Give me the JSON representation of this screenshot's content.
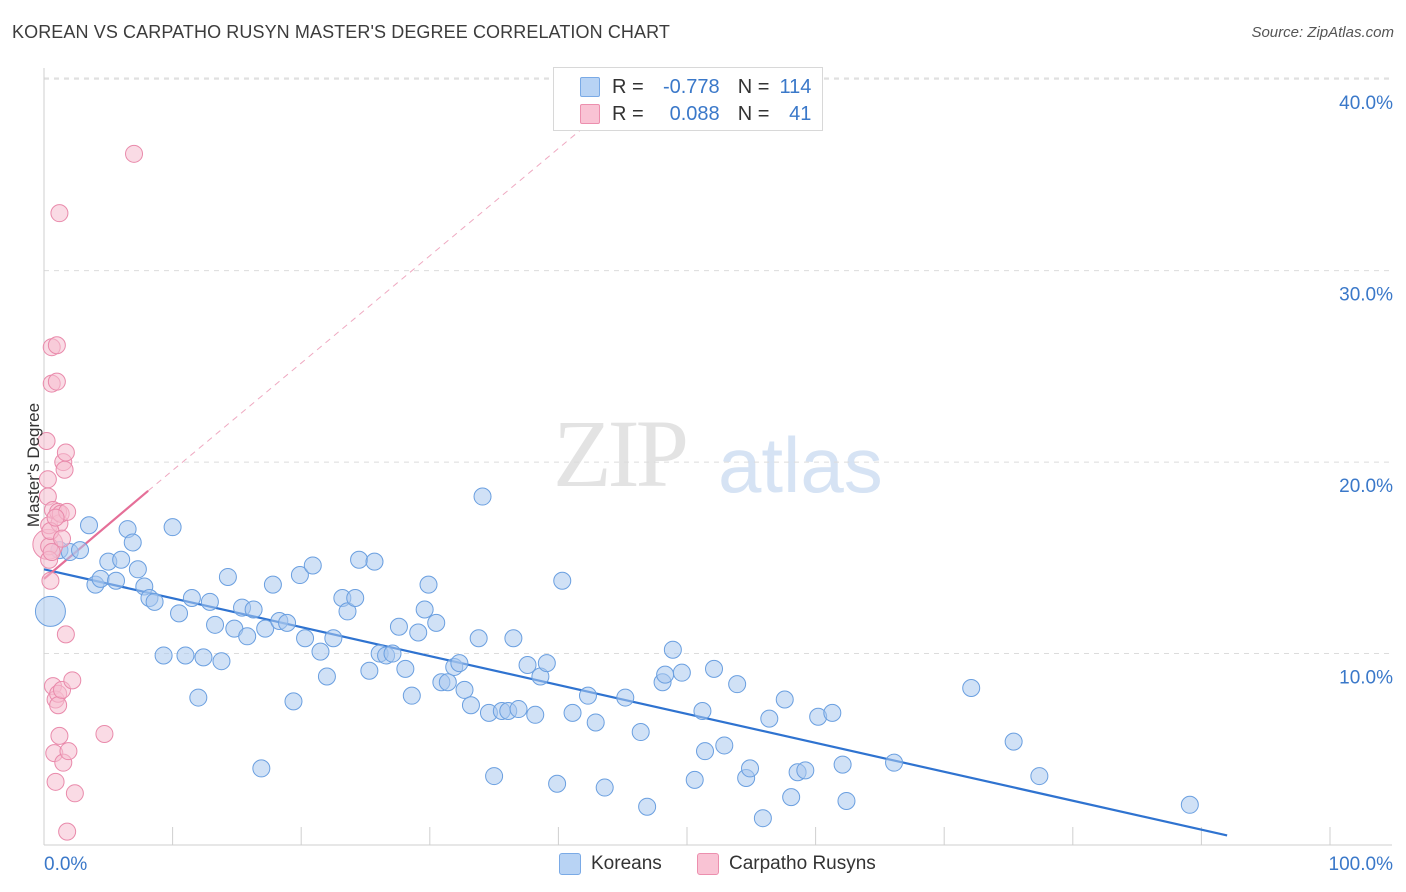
{
  "title": "KOREAN VS CARPATHO RUSYN MASTER'S DEGREE CORRELATION CHART",
  "source": "Source: ZipAtlas.com",
  "watermark": {
    "zip": "ZIP",
    "atlas": "atlas"
  },
  "legend": {
    "r_label": "R =",
    "n_label": "N =",
    "rows": [
      {
        "r": "-0.778",
        "n": "114",
        "fill": "#b8d3f4",
        "stroke": "#7aaae6"
      },
      {
        "r": "0.088",
        "n": "41",
        "fill": "#f9c3d4",
        "stroke": "#ec8fae"
      }
    ]
  },
  "bottom_legend": [
    {
      "label": "Koreans",
      "fill": "#b8d3f4",
      "stroke": "#7aaae6"
    },
    {
      "label": "Carpatho Rusyns",
      "fill": "#f9c3d4",
      "stroke": "#ec8fae"
    }
  ],
  "colors": {
    "blue_point": "#a9c8ef",
    "blue_stroke": "#6a9fe0",
    "blue_line": "#2f73d0",
    "pink_point": "#f6bdd0",
    "pink_stroke": "#e98aab",
    "pink_line": "#e56f98",
    "grid": "#dcdcdc",
    "axis_text": "#3a78c9"
  },
  "chart_data": {
    "type": "scatter",
    "title": "KOREAN VS CARPATHO RUSYN MASTER'S DEGREE CORRELATION CHART",
    "xlabel": "",
    "ylabel": "Master's Degree",
    "xlim": [
      0,
      100
    ],
    "ylim": [
      0,
      41
    ],
    "x_tick_labels": [
      "0.0%",
      "100.0%"
    ],
    "y_ticks": [
      10,
      20,
      30,
      40
    ],
    "y_tick_labels": [
      "10.0%",
      "20.0%",
      "30.0%",
      "40.0%"
    ],
    "grid": true,
    "series": [
      {
        "name": "Koreans",
        "r": -0.778,
        "n": 114,
        "trend": {
          "x": [
            0,
            92
          ],
          "y": [
            14.4,
            0.5
          ]
        },
        "points": [
          {
            "x": 0.5,
            "y": 12.2,
            "big": true
          },
          {
            "x": 1.2,
            "y": 15.4
          },
          {
            "x": 2.0,
            "y": 15.3
          },
          {
            "x": 2.8,
            "y": 15.4
          },
          {
            "x": 3.5,
            "y": 16.7
          },
          {
            "x": 4.0,
            "y": 13.6
          },
          {
            "x": 4.4,
            "y": 13.9
          },
          {
            "x": 5.0,
            "y": 14.8
          },
          {
            "x": 5.6,
            "y": 13.8
          },
          {
            "x": 6.0,
            "y": 14.9
          },
          {
            "x": 6.5,
            "y": 16.5
          },
          {
            "x": 6.9,
            "y": 15.8
          },
          {
            "x": 7.3,
            "y": 14.4
          },
          {
            "x": 7.8,
            "y": 13.5
          },
          {
            "x": 8.2,
            "y": 12.9
          },
          {
            "x": 8.6,
            "y": 12.7
          },
          {
            "x": 9.3,
            "y": 9.9
          },
          {
            "x": 10.0,
            "y": 16.6
          },
          {
            "x": 10.5,
            "y": 12.1
          },
          {
            "x": 11.0,
            "y": 9.9
          },
          {
            "x": 11.5,
            "y": 12.9
          },
          {
            "x": 12.0,
            "y": 7.7
          },
          {
            "x": 12.4,
            "y": 9.8
          },
          {
            "x": 12.9,
            "y": 12.7
          },
          {
            "x": 13.3,
            "y": 11.5
          },
          {
            "x": 13.8,
            "y": 9.6
          },
          {
            "x": 14.3,
            "y": 14.0
          },
          {
            "x": 14.8,
            "y": 11.3
          },
          {
            "x": 15.4,
            "y": 12.4
          },
          {
            "x": 15.8,
            "y": 10.9
          },
          {
            "x": 16.3,
            "y": 12.3
          },
          {
            "x": 16.9,
            "y": 4.0
          },
          {
            "x": 17.2,
            "y": 11.3
          },
          {
            "x": 17.8,
            "y": 13.6
          },
          {
            "x": 18.3,
            "y": 11.7
          },
          {
            "x": 18.9,
            "y": 11.6
          },
          {
            "x": 19.4,
            "y": 7.5
          },
          {
            "x": 19.9,
            "y": 14.1
          },
          {
            "x": 20.3,
            "y": 10.8
          },
          {
            "x": 20.9,
            "y": 14.6
          },
          {
            "x": 21.5,
            "y": 10.1
          },
          {
            "x": 22.0,
            "y": 8.8
          },
          {
            "x": 22.5,
            "y": 10.8
          },
          {
            "x": 23.2,
            "y": 12.9
          },
          {
            "x": 23.6,
            "y": 12.2
          },
          {
            "x": 24.2,
            "y": 12.9
          },
          {
            "x": 24.5,
            "y": 14.9
          },
          {
            "x": 25.3,
            "y": 9.1
          },
          {
            "x": 25.7,
            "y": 14.8
          },
          {
            "x": 26.1,
            "y": 10.0
          },
          {
            "x": 26.6,
            "y": 9.9
          },
          {
            "x": 27.1,
            "y": 10.0
          },
          {
            "x": 27.6,
            "y": 11.4
          },
          {
            "x": 28.1,
            "y": 9.2
          },
          {
            "x": 28.6,
            "y": 7.8
          },
          {
            "x": 29.1,
            "y": 11.1
          },
          {
            "x": 29.6,
            "y": 12.3
          },
          {
            "x": 29.9,
            "y": 13.6
          },
          {
            "x": 30.5,
            "y": 11.6
          },
          {
            "x": 30.9,
            "y": 8.5
          },
          {
            "x": 31.4,
            "y": 8.5
          },
          {
            "x": 31.9,
            "y": 9.3
          },
          {
            "x": 32.3,
            "y": 9.5
          },
          {
            "x": 32.7,
            "y": 8.1
          },
          {
            "x": 33.2,
            "y": 7.3
          },
          {
            "x": 33.8,
            "y": 10.8
          },
          {
            "x": 34.1,
            "y": 18.2
          },
          {
            "x": 34.6,
            "y": 6.9
          },
          {
            "x": 35.0,
            "y": 3.6
          },
          {
            "x": 35.6,
            "y": 7.0
          },
          {
            "x": 36.1,
            "y": 7.0
          },
          {
            "x": 36.5,
            "y": 10.8
          },
          {
            "x": 36.9,
            "y": 7.1
          },
          {
            "x": 37.6,
            "y": 9.4
          },
          {
            "x": 38.2,
            "y": 6.8
          },
          {
            "x": 38.6,
            "y": 8.8
          },
          {
            "x": 39.1,
            "y": 9.5
          },
          {
            "x": 39.9,
            "y": 3.2
          },
          {
            "x": 40.3,
            "y": 13.8
          },
          {
            "x": 41.1,
            "y": 6.9
          },
          {
            "x": 42.3,
            "y": 7.8
          },
          {
            "x": 42.9,
            "y": 6.4
          },
          {
            "x": 43.6,
            "y": 3.0
          },
          {
            "x": 45.2,
            "y": 7.7
          },
          {
            "x": 46.4,
            "y": 5.9
          },
          {
            "x": 46.9,
            "y": 2.0
          },
          {
            "x": 48.1,
            "y": 8.5
          },
          {
            "x": 48.3,
            "y": 8.9
          },
          {
            "x": 48.9,
            "y": 10.2
          },
          {
            "x": 49.6,
            "y": 9.0
          },
          {
            "x": 50.6,
            "y": 3.4
          },
          {
            "x": 51.2,
            "y": 7.0
          },
          {
            "x": 51.4,
            "y": 4.9
          },
          {
            "x": 52.1,
            "y": 9.2
          },
          {
            "x": 52.9,
            "y": 5.2
          },
          {
            "x": 53.9,
            "y": 8.4
          },
          {
            "x": 54.6,
            "y": 3.5
          },
          {
            "x": 54.9,
            "y": 4.0
          },
          {
            "x": 55.9,
            "y": 1.4
          },
          {
            "x": 56.4,
            "y": 6.6
          },
          {
            "x": 57.6,
            "y": 7.6
          },
          {
            "x": 58.1,
            "y": 2.5
          },
          {
            "x": 58.6,
            "y": 3.8
          },
          {
            "x": 59.2,
            "y": 3.9
          },
          {
            "x": 60.2,
            "y": 6.7
          },
          {
            "x": 61.3,
            "y": 6.9
          },
          {
            "x": 62.1,
            "y": 4.2
          },
          {
            "x": 62.4,
            "y": 2.3
          },
          {
            "x": 66.1,
            "y": 4.3
          },
          {
            "x": 72.1,
            "y": 8.2
          },
          {
            "x": 75.4,
            "y": 5.4
          },
          {
            "x": 77.4,
            "y": 3.6
          },
          {
            "x": 89.1,
            "y": 2.1
          }
        ]
      },
      {
        "name": "Carpatho Rusyns",
        "r": 0.088,
        "n": 41,
        "trend": {
          "x": [
            0,
            8.1
          ],
          "y": [
            13.9,
            18.5
          ]
        },
        "trend_extended": {
          "x": [
            8.1,
            42
          ],
          "y": [
            18.5,
            37.5
          ]
        },
        "points": [
          {
            "x": 0.3,
            "y": 15.7,
            "big": true
          },
          {
            "x": 0.2,
            "y": 21.1
          },
          {
            "x": 0.3,
            "y": 19.1
          },
          {
            "x": 0.3,
            "y": 18.2
          },
          {
            "x": 0.4,
            "y": 16.7
          },
          {
            "x": 0.4,
            "y": 15.6
          },
          {
            "x": 0.4,
            "y": 14.9
          },
          {
            "x": 0.5,
            "y": 13.8
          },
          {
            "x": 0.6,
            "y": 26.0
          },
          {
            "x": 0.6,
            "y": 24.1
          },
          {
            "x": 0.7,
            "y": 17.5
          },
          {
            "x": 0.7,
            "y": 8.3
          },
          {
            "x": 0.8,
            "y": 4.8
          },
          {
            "x": 0.9,
            "y": 7.6
          },
          {
            "x": 0.9,
            "y": 3.3
          },
          {
            "x": 1.0,
            "y": 26.1
          },
          {
            "x": 1.0,
            "y": 24.2
          },
          {
            "x": 1.1,
            "y": 17.4
          },
          {
            "x": 1.1,
            "y": 7.9
          },
          {
            "x": 1.1,
            "y": 7.3
          },
          {
            "x": 1.2,
            "y": 33.0
          },
          {
            "x": 1.2,
            "y": 16.8
          },
          {
            "x": 1.2,
            "y": 5.7
          },
          {
            "x": 1.3,
            "y": 17.3
          },
          {
            "x": 1.4,
            "y": 8.1
          },
          {
            "x": 1.5,
            "y": 4.3
          },
          {
            "x": 1.5,
            "y": 20.0
          },
          {
            "x": 1.6,
            "y": 19.6
          },
          {
            "x": 1.7,
            "y": 20.5
          },
          {
            "x": 1.7,
            "y": 11.0
          },
          {
            "x": 1.8,
            "y": 0.7
          },
          {
            "x": 1.8,
            "y": 17.4
          },
          {
            "x": 1.9,
            "y": 4.9
          },
          {
            "x": 2.2,
            "y": 8.6
          },
          {
            "x": 2.4,
            "y": 2.7
          },
          {
            "x": 4.7,
            "y": 5.8
          },
          {
            "x": 7.0,
            "y": 36.1
          },
          {
            "x": 0.5,
            "y": 16.4
          },
          {
            "x": 0.9,
            "y": 17.1
          },
          {
            "x": 0.6,
            "y": 15.3
          },
          {
            "x": 1.4,
            "y": 16.0
          }
        ]
      }
    ]
  }
}
